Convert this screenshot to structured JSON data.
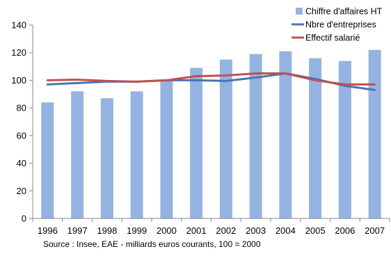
{
  "chart_data": {
    "type": "bar",
    "categories": [
      "1996",
      "1997",
      "1998",
      "1999",
      "2000",
      "2001",
      "2002",
      "2003",
      "2004",
      "2005",
      "2006",
      "2007"
    ],
    "series": [
      {
        "name": "Chiffre d'affaires HT",
        "kind": "bar",
        "color": "#95B3E0",
        "values": [
          84,
          92,
          87,
          92,
          100,
          109,
          115,
          119,
          121,
          116,
          114,
          122
        ]
      },
      {
        "name": "Nbre d'entreprises",
        "kind": "line",
        "color": "#4A73B5",
        "values": [
          97,
          98,
          99,
          99,
          100,
          100,
          99.5,
          102,
          105,
          101,
          96,
          93
        ]
      },
      {
        "name": "Effectif salarié",
        "kind": "line",
        "color": "#C0504D",
        "values": [
          100,
          100.5,
          99.5,
          99,
          100,
          103,
          103.5,
          105,
          105,
          100,
          97,
          97
        ]
      }
    ],
    "ylim": [
      0,
      140
    ],
    "yticks": [
      0,
      20,
      40,
      60,
      80,
      100,
      120,
      140
    ],
    "grid": false,
    "legend_position": "top-right"
  },
  "source_note": "Source : Insee, EAE - milliards euros courants, 100 = 2000"
}
